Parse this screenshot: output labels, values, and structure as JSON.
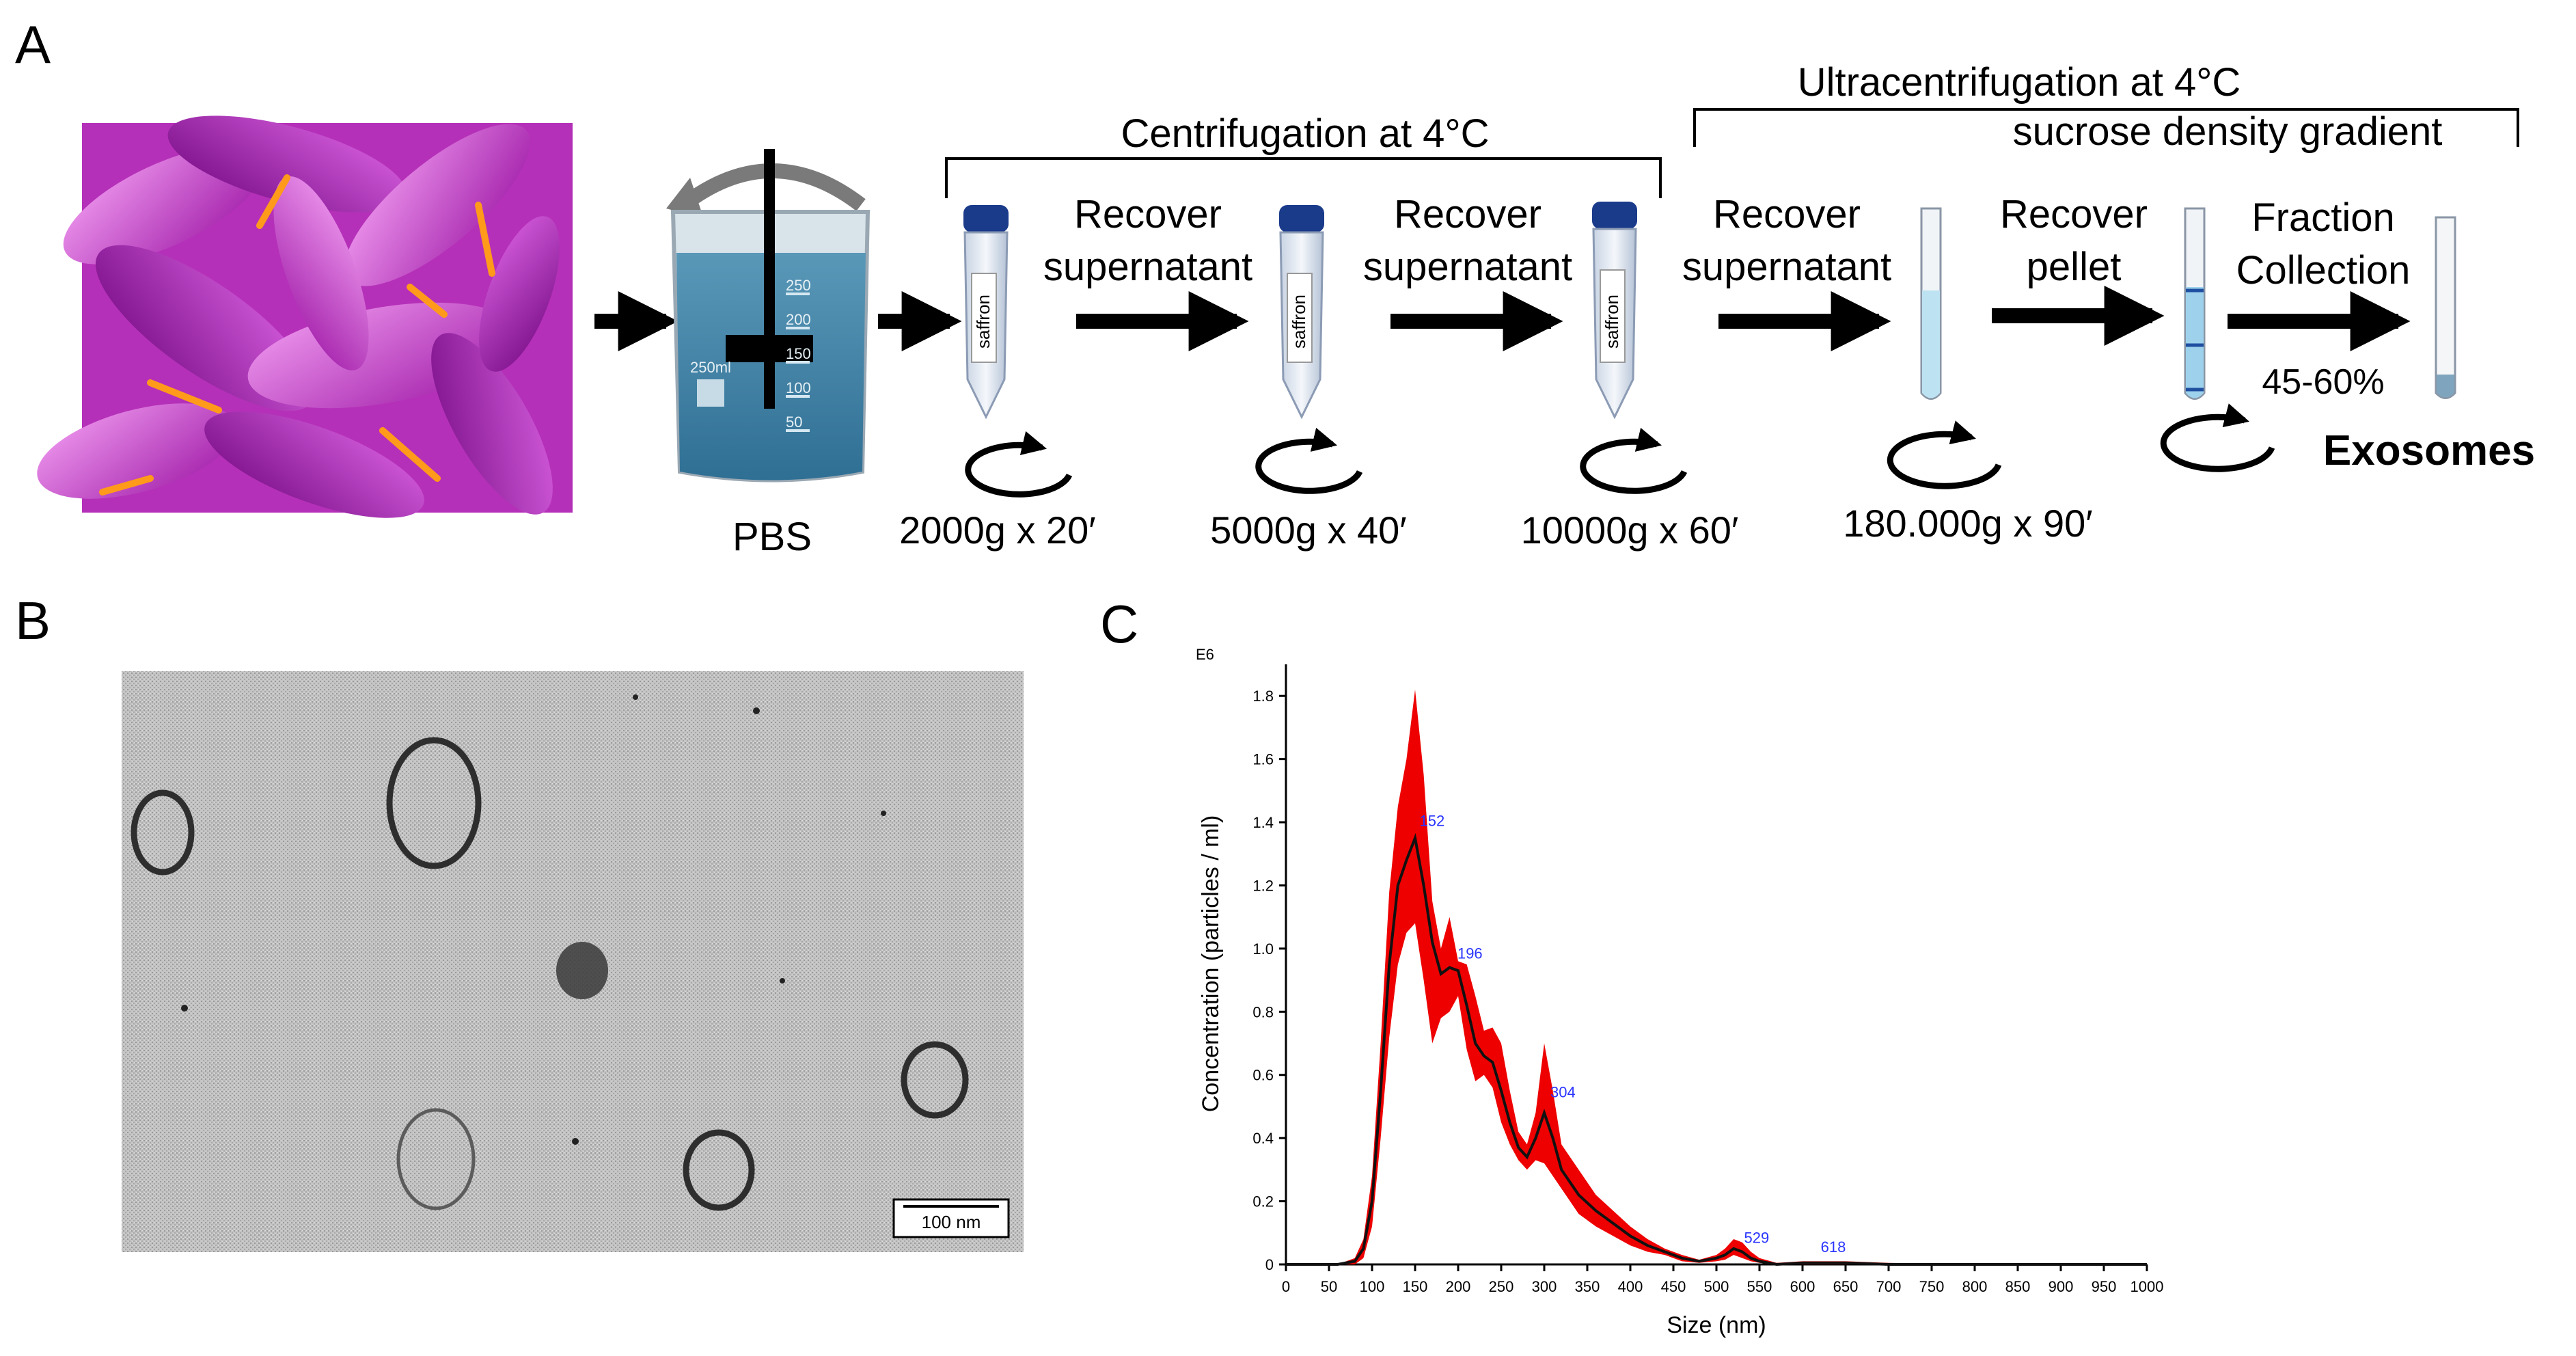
{
  "panels": {
    "a": "A",
    "b": "B",
    "c": "C"
  },
  "workflow": {
    "beaker_label": "PBS",
    "beaker_marks": [
      "250",
      "200",
      "150",
      "100",
      "50"
    ],
    "beaker_volume": "250ml",
    "tube_label": "saffron",
    "centrifugation_header": "Centrifugation at 4°C",
    "ultra_header": "Ultracentrifugation at 4°C",
    "ultra_subheader": "sucrose density gradient",
    "step_labels": [
      {
        "line1": "Recover",
        "line2": "supernatant"
      },
      {
        "line1": "Recover",
        "line2": "supernatant"
      },
      {
        "line1": "Recover",
        "line2": "supernatant"
      },
      {
        "line1": "Recover",
        "line2": "pellet"
      },
      {
        "line1": "Fraction",
        "line2": "Collection"
      }
    ],
    "fraction_range": "45-60%",
    "spin_labels": [
      "2000g x 20′",
      "5000g x 40′",
      "10000g x 60′",
      "180.000g x 90′"
    ],
    "result": "Exosomes"
  },
  "tem": {
    "scale_bar": "100 nm"
  },
  "chart_data": {
    "type": "area",
    "title": "",
    "xlabel": "Size (nm)",
    "ylabel": "Concentration (particles / ml)",
    "y_multiplier": "E6",
    "xlim": [
      0,
      1000
    ],
    "ylim": [
      0,
      1.9
    ],
    "xticks": [
      "0",
      "50",
      "100",
      "150",
      "200",
      "250",
      "300",
      "350",
      "400",
      "450",
      "500",
      "550",
      "600",
      "650",
      "700",
      "750",
      "800",
      "850",
      "900",
      "950",
      "1000"
    ],
    "yticks": [
      "0",
      "0.2",
      "0.4",
      "0.6",
      "0.8",
      "1.0",
      "1.2",
      "1.4",
      "1.6",
      "1.8"
    ],
    "peak_labels": [
      {
        "x": 152,
        "y": 1.38,
        "label": "152"
      },
      {
        "x": 196,
        "y": 0.96,
        "label": "196"
      },
      {
        "x": 304,
        "y": 0.52,
        "label": "304"
      },
      {
        "x": 529,
        "y": 0.06,
        "label": "529"
      },
      {
        "x": 618,
        "y": 0.03,
        "label": "618"
      }
    ],
    "mean_series": {
      "x": [
        0,
        60,
        80,
        90,
        100,
        110,
        120,
        130,
        140,
        150,
        160,
        170,
        180,
        190,
        200,
        210,
        220,
        230,
        240,
        250,
        260,
        270,
        280,
        290,
        300,
        310,
        320,
        340,
        360,
        380,
        400,
        420,
        440,
        460,
        480,
        500,
        510,
        520,
        530,
        540,
        550,
        570,
        600,
        650,
        700,
        800,
        1000
      ],
      "y": [
        0,
        0,
        0.01,
        0.05,
        0.2,
        0.55,
        0.95,
        1.2,
        1.28,
        1.35,
        1.2,
        1.02,
        0.92,
        0.94,
        0.93,
        0.82,
        0.7,
        0.66,
        0.64,
        0.55,
        0.45,
        0.37,
        0.34,
        0.4,
        0.48,
        0.4,
        0.3,
        0.22,
        0.17,
        0.13,
        0.09,
        0.06,
        0.04,
        0.02,
        0.01,
        0.02,
        0.03,
        0.05,
        0.04,
        0.02,
        0.01,
        0,
        0.005,
        0.005,
        0,
        0,
        0
      ]
    },
    "band_upper": [
      0,
      0,
      0.02,
      0.08,
      0.28,
      0.7,
      1.18,
      1.45,
      1.6,
      1.82,
      1.55,
      1.15,
      1.0,
      1.1,
      0.96,
      0.95,
      0.85,
      0.74,
      0.75,
      0.7,
      0.55,
      0.42,
      0.38,
      0.48,
      0.7,
      0.55,
      0.38,
      0.3,
      0.22,
      0.17,
      0.12,
      0.08,
      0.05,
      0.03,
      0.015,
      0.03,
      0.05,
      0.08,
      0.07,
      0.04,
      0.02,
      0.005,
      0.01,
      0.01,
      0.005,
      0,
      0
    ],
    "band_lower": [
      0,
      0,
      0,
      0.02,
      0.12,
      0.4,
      0.72,
      0.95,
      1.05,
      1.08,
      0.9,
      0.7,
      0.78,
      0.8,
      0.85,
      0.68,
      0.58,
      0.6,
      0.56,
      0.45,
      0.38,
      0.33,
      0.3,
      0.33,
      0.32,
      0.28,
      0.24,
      0.16,
      0.12,
      0.09,
      0.06,
      0.04,
      0.03,
      0.01,
      0.005,
      0.01,
      0.015,
      0.03,
      0.02,
      0.01,
      0.005,
      0,
      0,
      0,
      0,
      0,
      0
    ],
    "colors": {
      "band": "#ee0000",
      "mean": "#111111",
      "peak_labels": "#2b35ff"
    },
    "grid": false
  }
}
